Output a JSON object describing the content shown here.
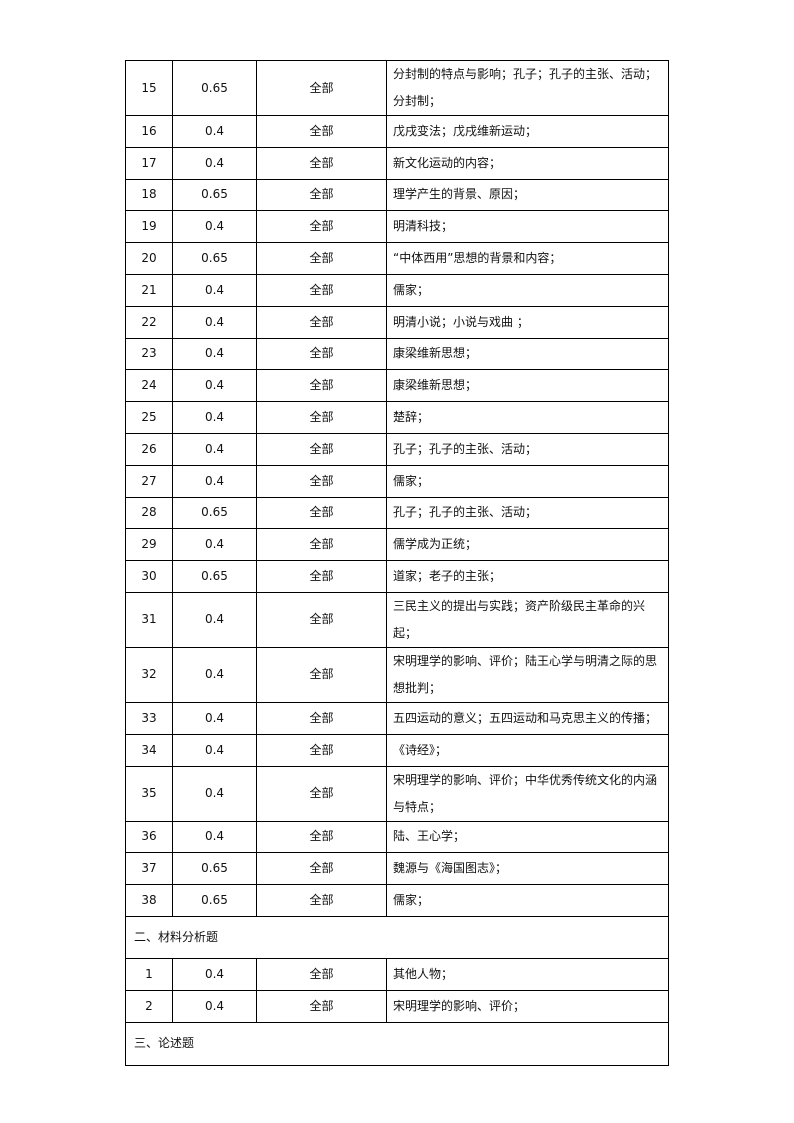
{
  "rows": [
    {
      "no": "15",
      "difficulty": "0.65",
      "scope": "全部",
      "points": "分封制的特点与影响；孔子；孔子的主张、活动；分封制；"
    },
    {
      "no": "16",
      "difficulty": "0.4",
      "scope": "全部",
      "points": "戊戌变法；戊戌维新运动；"
    },
    {
      "no": "17",
      "difficulty": "0.4",
      "scope": "全部",
      "points": "新文化运动的内容；"
    },
    {
      "no": "18",
      "difficulty": "0.65",
      "scope": "全部",
      "points": "理学产生的背景、原因；"
    },
    {
      "no": "19",
      "difficulty": "0.4",
      "scope": "全部",
      "points": "明清科技；"
    },
    {
      "no": "20",
      "difficulty": "0.65",
      "scope": "全部",
      "points": "“中体西用”思想的背景和内容；"
    },
    {
      "no": "21",
      "difficulty": "0.4",
      "scope": "全部",
      "points": "儒家；"
    },
    {
      "no": "22",
      "difficulty": "0.4",
      "scope": "全部",
      "points": "明清小说；小说与戏曲 ；"
    },
    {
      "no": "23",
      "difficulty": "0.4",
      "scope": "全部",
      "points": "康梁维新思想；"
    },
    {
      "no": "24",
      "difficulty": "0.4",
      "scope": "全部",
      "points": "康梁维新思想；"
    },
    {
      "no": "25",
      "difficulty": "0.4",
      "scope": "全部",
      "points": "楚辞；"
    },
    {
      "no": "26",
      "difficulty": "0.4",
      "scope": "全部",
      "points": "孔子；孔子的主张、活动；"
    },
    {
      "no": "27",
      "difficulty": "0.4",
      "scope": "全部",
      "points": "儒家；"
    },
    {
      "no": "28",
      "difficulty": "0.65",
      "scope": "全部",
      "points": "孔子；孔子的主张、活动；"
    },
    {
      "no": "29",
      "difficulty": "0.4",
      "scope": "全部",
      "points": "儒学成为正统；"
    },
    {
      "no": "30",
      "difficulty": "0.65",
      "scope": "全部",
      "points": "道家；老子的主张；"
    },
    {
      "no": "31",
      "difficulty": "0.4",
      "scope": "全部",
      "points": "三民主义的提出与实践；资产阶级民主革命的兴起；"
    },
    {
      "no": "32",
      "difficulty": "0.4",
      "scope": "全部",
      "points": "宋明理学的影响、评价；陆王心学与明清之际的思想批判；"
    },
    {
      "no": "33",
      "difficulty": "0.4",
      "scope": "全部",
      "points": "五四运动的意义；五四运动和马克思主义的传播；"
    },
    {
      "no": "34",
      "difficulty": "0.4",
      "scope": "全部",
      "points": "《诗经》；"
    },
    {
      "no": "35",
      "difficulty": "0.4",
      "scope": "全部",
      "points": "宋明理学的影响、评价；中华优秀传统文化的内涵与特点；"
    },
    {
      "no": "36",
      "difficulty": "0.4",
      "scope": "全部",
      "points": "陆、王心学；"
    },
    {
      "no": "37",
      "difficulty": "0.65",
      "scope": "全部",
      "points": "魏源与《海国图志》；"
    },
    {
      "no": "38",
      "difficulty": "0.65",
      "scope": "全部",
      "points": "儒家；"
    }
  ],
  "section2": {
    "title": "二、材料分析题",
    "rows": [
      {
        "no": "1",
        "difficulty": "0.4",
        "scope": "全部",
        "points": "其他人物；"
      },
      {
        "no": "2",
        "difficulty": "0.4",
        "scope": "全部",
        "points": "宋明理学的影响、评价；"
      }
    ]
  },
  "section3": {
    "title": "三、论述题"
  }
}
